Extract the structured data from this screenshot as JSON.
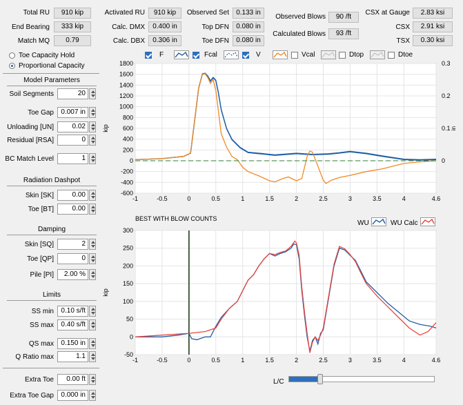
{
  "header": {
    "total_ru": {
      "label": "Total RU",
      "value": "910 kip"
    },
    "end_bearing": {
      "label": "End Bearing",
      "value": "333 kip"
    },
    "match_mq": {
      "label": "Match MQ",
      "value": "0.79"
    },
    "activated_ru": {
      "label": "Activated RU",
      "value": "910 kip"
    },
    "calc_dmx": {
      "label": "Calc. DMX",
      "value": "0.400 in"
    },
    "calc_dbx": {
      "label": "Calc. DBX",
      "value": "0.306 in"
    },
    "observed_set": {
      "label": "Observed Set",
      "value": "0.133 in"
    },
    "top_dfn": {
      "label": "Top DFN",
      "value": "0.080 in"
    },
    "toe_dfn": {
      "label": "Toe DFN",
      "value": "0.080 in"
    },
    "observed_blows": {
      "label": "Observed Blows",
      "value": "90 /ft"
    },
    "calculated_blows": {
      "label": "Calculated Blows",
      "value": "93 /ft"
    },
    "csx_gauge": {
      "label": "CSX at Gauge",
      "value": "2.83 ksi"
    },
    "csx": {
      "label": "CSX",
      "value": "2.91 ksi"
    },
    "tsx": {
      "label": "TSX",
      "value": "0.30 ksi"
    }
  },
  "capacity_mode": {
    "options": [
      "Toe Capacity Hold",
      "Proportional Capacity"
    ],
    "selected": "Proportional Capacity"
  },
  "model": {
    "title": "Model Parameters",
    "soil_segments": {
      "label": "Soil Segments",
      "value": "20"
    },
    "toe_gap": {
      "label": "Toe Gap",
      "value": "0.007 in"
    },
    "unloading": {
      "label": "Unloading [UN]",
      "value": "0.02"
    },
    "residual": {
      "label": "Residual [RSA]",
      "value": "0"
    },
    "bc_match": {
      "label": "BC Match Level",
      "value": "1"
    }
  },
  "dashpot": {
    "title": "Radiation Dashpot",
    "skin": {
      "label": "Skin [SK]",
      "value": "0.00"
    },
    "toe": {
      "label": "Toe [BT]",
      "value": "0.00"
    }
  },
  "damping": {
    "title": "Damping",
    "skin": {
      "label": "Skin [SQ]",
      "value": "2"
    },
    "toe": {
      "label": "Toe [QP]",
      "value": "0"
    },
    "pile": {
      "label": "Pile [PI]",
      "value": "2.00 %"
    }
  },
  "limits": {
    "title": "Limits",
    "ss_min": {
      "label": "SS min",
      "value": "0.10 s/ft"
    },
    "ss_max": {
      "label": "SS max",
      "value": "0.40 s/ft"
    },
    "qs_max": {
      "label": "QS max",
      "value": "0.150 in"
    },
    "q_ratio": {
      "label": "Q Ratio max",
      "value": "1.1"
    }
  },
  "extra": {
    "toe": {
      "label": "Extra Toe",
      "value": "0.00 ft"
    },
    "toe_gap": {
      "label": "Extra Toe Gap",
      "value": "0.000 in"
    }
  },
  "legend_top": {
    "f": {
      "label": "F",
      "checked": true
    },
    "fcal": {
      "label": "Fcal",
      "checked": true
    },
    "v": {
      "label": "V",
      "checked": true
    },
    "vcal": {
      "label": "Vcal",
      "checked": false
    },
    "dtop": {
      "label": "Dtop",
      "checked": false
    },
    "dtoe": {
      "label": "Dtoe",
      "checked": false
    }
  },
  "legend_bottom": {
    "wu": "WU",
    "wu_calc": "WU Calc"
  },
  "status_text": "BEST WITH BLOW COUNTS",
  "slider": {
    "label": "L/C",
    "level": 0.1
  },
  "colors": {
    "blue": "#1f5fa6",
    "orange": "#f08a24",
    "red": "#e8463f",
    "green_marker": "#2e7d32",
    "status_green": "#2aa52a"
  },
  "chart_data": [
    {
      "type": "line",
      "title": "",
      "xlabel": "",
      "ylabel": "kip",
      "y2label": "in",
      "xlim": [
        -1,
        4.6
      ],
      "ylim": [
        -600,
        1800
      ],
      "y2lim": [
        -0.1,
        0.3
      ],
      "x_ticks": [
        "-1",
        "-0.5",
        "0",
        "0.5",
        "1",
        "1.5",
        "2",
        "2.5",
        "3",
        "3.5",
        "4",
        "4.6"
      ],
      "y_ticks": [
        "-600",
        "-400",
        "-200",
        "0",
        "200",
        "400",
        "600",
        "800",
        "1000",
        "1200",
        "1400",
        "1600",
        "1800"
      ],
      "y2_ticks": [
        "0",
        "0.1",
        "0.2",
        "0.3"
      ],
      "grid": true,
      "series": [
        {
          "name": "F",
          "color": "#1f5fa6",
          "points": [
            [
              -1,
              20
            ],
            [
              -0.5,
              40
            ],
            [
              -0.1,
              80
            ],
            [
              0.03,
              140
            ],
            [
              0.1,
              700
            ],
            [
              0.18,
              1350
            ],
            [
              0.25,
              1610
            ],
            [
              0.3,
              1620
            ],
            [
              0.35,
              1570
            ],
            [
              0.4,
              1480
            ],
            [
              0.45,
              1545
            ],
            [
              0.5,
              1490
            ],
            [
              0.55,
              1250
            ],
            [
              0.6,
              950
            ],
            [
              0.7,
              600
            ],
            [
              0.8,
              400
            ],
            [
              0.95,
              250
            ],
            [
              1.1,
              160
            ],
            [
              1.3,
              140
            ],
            [
              1.6,
              110
            ],
            [
              2.0,
              140
            ],
            [
              2.3,
              120
            ],
            [
              2.6,
              130
            ],
            [
              2.8,
              150
            ],
            [
              3.0,
              175
            ],
            [
              3.3,
              140
            ],
            [
              3.6,
              90
            ],
            [
              4.0,
              30
            ],
            [
              4.3,
              20
            ],
            [
              4.6,
              30
            ]
          ]
        },
        {
          "name": "Fcal",
          "color": "#1f5fa6",
          "points": [
            [
              -1,
              20
            ],
            [
              -0.5,
              40
            ],
            [
              -0.1,
              80
            ],
            [
              0.03,
              140
            ],
            [
              0.1,
              690
            ],
            [
              0.18,
              1340
            ],
            [
              0.25,
              1600
            ],
            [
              0.3,
              1610
            ],
            [
              0.35,
              1560
            ],
            [
              0.4,
              1470
            ],
            [
              0.45,
              1535
            ],
            [
              0.5,
              1480
            ],
            [
              0.55,
              1240
            ],
            [
              0.6,
              940
            ],
            [
              0.7,
              590
            ],
            [
              0.8,
              390
            ],
            [
              0.95,
              240
            ],
            [
              1.1,
              150
            ],
            [
              1.3,
              130
            ],
            [
              1.6,
              100
            ],
            [
              2.0,
              130
            ],
            [
              2.3,
              110
            ],
            [
              2.6,
              120
            ],
            [
              2.8,
              140
            ],
            [
              3.0,
              165
            ],
            [
              3.3,
              130
            ],
            [
              3.6,
              80
            ],
            [
              4.0,
              20
            ],
            [
              4.3,
              10
            ],
            [
              4.6,
              20
            ]
          ]
        },
        {
          "name": "V",
          "color": "#f08a24",
          "points": [
            [
              -1,
              20
            ],
            [
              -0.5,
              40
            ],
            [
              -0.1,
              80
            ],
            [
              0.03,
              140
            ],
            [
              0.1,
              700
            ],
            [
              0.18,
              1350
            ],
            [
              0.25,
              1600
            ],
            [
              0.3,
              1610
            ],
            [
              0.35,
              1540
            ],
            [
              0.4,
              1430
            ],
            [
              0.45,
              1500
            ],
            [
              0.5,
              1300
            ],
            [
              0.6,
              500
            ],
            [
              0.7,
              250
            ],
            [
              0.8,
              80
            ],
            [
              0.9,
              20
            ],
            [
              1.0,
              -120
            ],
            [
              1.1,
              -200
            ],
            [
              1.3,
              -280
            ],
            [
              1.5,
              -370
            ],
            [
              1.6,
              -390
            ],
            [
              1.75,
              -330
            ],
            [
              1.85,
              -300
            ],
            [
              2.0,
              -370
            ],
            [
              2.1,
              -330
            ],
            [
              2.2,
              80
            ],
            [
              2.25,
              180
            ],
            [
              2.3,
              160
            ],
            [
              2.4,
              -100
            ],
            [
              2.5,
              -360
            ],
            [
              2.55,
              -420
            ],
            [
              2.65,
              -360
            ],
            [
              2.8,
              -310
            ],
            [
              3.0,
              -270
            ],
            [
              3.3,
              -200
            ],
            [
              3.6,
              -150
            ],
            [
              4.0,
              -50
            ],
            [
              4.3,
              -20
            ],
            [
              4.6,
              0
            ]
          ]
        },
        {
          "name": "Dtop",
          "color": "#2e7d32",
          "points": [
            [
              -1,
              0
            ],
            [
              4.6,
              0
            ]
          ]
        }
      ]
    },
    {
      "type": "line",
      "title": "",
      "xlabel": "",
      "ylabel": "kip",
      "xlim": [
        -1,
        4.6
      ],
      "ylim": [
        -50,
        300
      ],
      "x_ticks": [
        "-1",
        "-0.5",
        "0",
        "0.5",
        "1",
        "1.5",
        "2",
        "2.5",
        "3",
        "3.5",
        "4",
        "4.6"
      ],
      "y_ticks": [
        "-50",
        "0",
        "50",
        "100",
        "150",
        "200",
        "250",
        "300"
      ],
      "grid": true,
      "series": [
        {
          "name": "WU",
          "color": "#1f5fa6",
          "points": [
            [
              -1,
              0
            ],
            [
              -0.5,
              0
            ],
            [
              -0.2,
              5
            ],
            [
              0,
              10
            ],
            [
              0.05,
              -5
            ],
            [
              0.15,
              -8
            ],
            [
              0.3,
              0
            ],
            [
              0.4,
              0
            ],
            [
              0.5,
              30
            ],
            [
              0.6,
              55
            ],
            [
              0.75,
              80
            ],
            [
              0.9,
              100
            ],
            [
              1.0,
              130
            ],
            [
              1.1,
              160
            ],
            [
              1.2,
              175
            ],
            [
              1.3,
              200
            ],
            [
              1.4,
              220
            ],
            [
              1.5,
              235
            ],
            [
              1.6,
              228
            ],
            [
              1.7,
              235
            ],
            [
              1.8,
              240
            ],
            [
              1.9,
              250
            ],
            [
              1.95,
              262
            ],
            [
              2.0,
              260
            ],
            [
              2.05,
              220
            ],
            [
              2.1,
              130
            ],
            [
              2.15,
              60
            ],
            [
              2.2,
              0
            ],
            [
              2.25,
              -40
            ],
            [
              2.3,
              -10
            ],
            [
              2.35,
              0
            ],
            [
              2.4,
              -20
            ],
            [
              2.45,
              10
            ],
            [
              2.5,
              20
            ],
            [
              2.6,
              110
            ],
            [
              2.7,
              200
            ],
            [
              2.8,
              250
            ],
            [
              2.9,
              245
            ],
            [
              3.0,
              230
            ],
            [
              3.1,
              215
            ],
            [
              3.2,
              185
            ],
            [
              3.3,
              155
            ],
            [
              3.5,
              125
            ],
            [
              3.7,
              95
            ],
            [
              3.9,
              70
            ],
            [
              4.1,
              45
            ],
            [
              4.3,
              35
            ],
            [
              4.5,
              30
            ],
            [
              4.6,
              25
            ]
          ]
        },
        {
          "name": "WU Calc",
          "color": "#e8463f",
          "points": [
            [
              -1,
              0
            ],
            [
              -0.5,
              5
            ],
            [
              0,
              10
            ],
            [
              0.3,
              15
            ],
            [
              0.5,
              25
            ],
            [
              0.6,
              50
            ],
            [
              0.75,
              80
            ],
            [
              0.9,
              100
            ],
            [
              1.0,
              130
            ],
            [
              1.1,
              160
            ],
            [
              1.2,
              175
            ],
            [
              1.3,
              200
            ],
            [
              1.4,
              220
            ],
            [
              1.5,
              235
            ],
            [
              1.6,
              232
            ],
            [
              1.7,
              238
            ],
            [
              1.8,
              242
            ],
            [
              1.9,
              255
            ],
            [
              1.97,
              270
            ],
            [
              2.0,
              265
            ],
            [
              2.05,
              230
            ],
            [
              2.1,
              140
            ],
            [
              2.15,
              70
            ],
            [
              2.2,
              10
            ],
            [
              2.25,
              -45
            ],
            [
              2.3,
              -15
            ],
            [
              2.35,
              0
            ],
            [
              2.4,
              -10
            ],
            [
              2.45,
              5
            ],
            [
              2.5,
              25
            ],
            [
              2.6,
              115
            ],
            [
              2.7,
              205
            ],
            [
              2.8,
              255
            ],
            [
              2.9,
              248
            ],
            [
              3.0,
              232
            ],
            [
              3.1,
              212
            ],
            [
              3.2,
              180
            ],
            [
              3.3,
              150
            ],
            [
              3.5,
              115
            ],
            [
              3.7,
              85
            ],
            [
              3.9,
              55
            ],
            [
              4.1,
              25
            ],
            [
              4.3,
              5
            ],
            [
              4.45,
              15
            ],
            [
              4.6,
              40
            ]
          ]
        }
      ],
      "marker_x": 0
    }
  ]
}
